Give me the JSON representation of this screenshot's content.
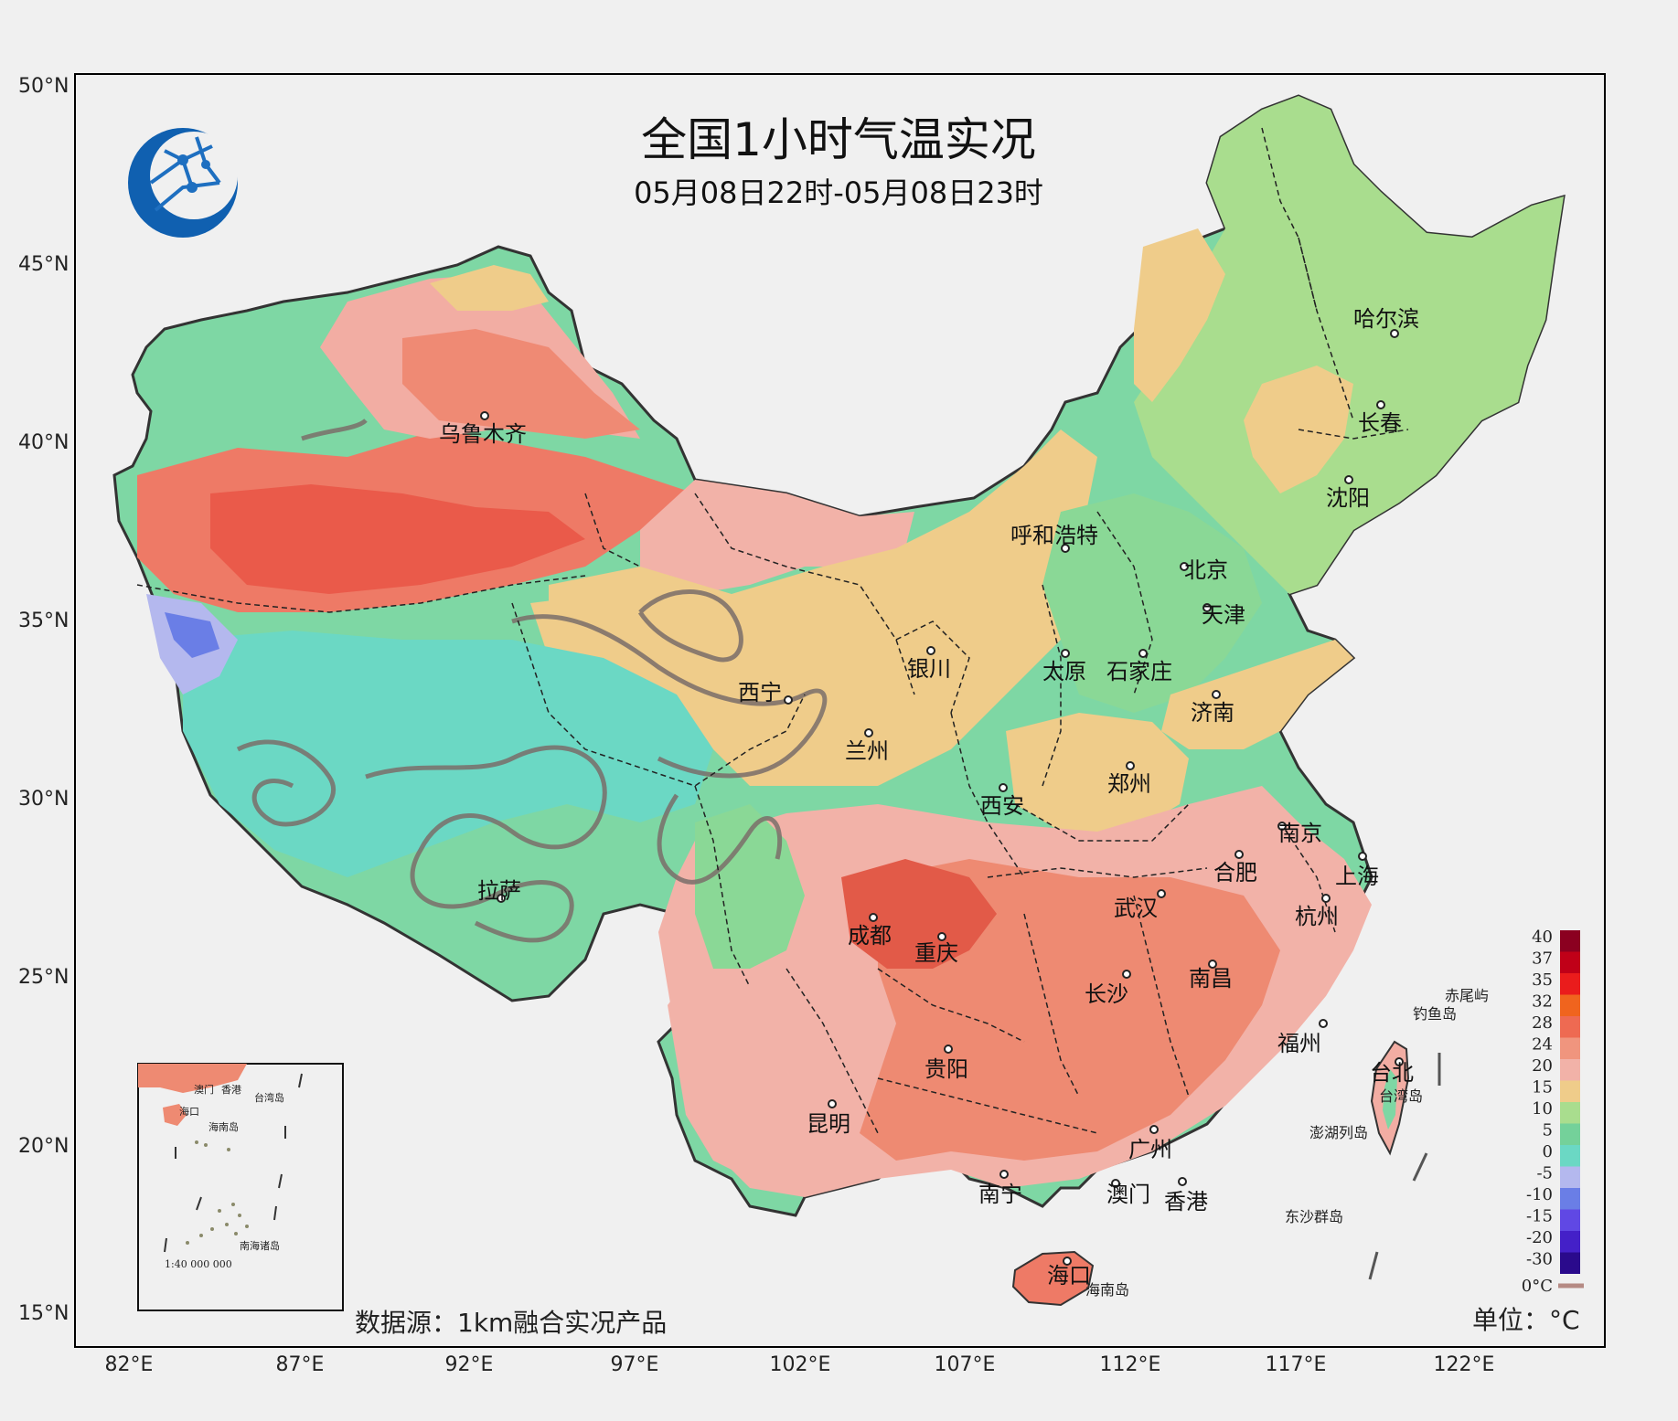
{
  "title": "全国1小时气温实况",
  "subtitle": "05月08日22时-05月08日23时",
  "data_source": "数据源：1km融合实况产品",
  "unit_label": "单位：°C",
  "axes": {
    "lat_labels": [
      "50°N",
      "45°N",
      "40°N",
      "35°N",
      "30°N",
      "25°N",
      "20°N",
      "15°N"
    ],
    "lon_labels": [
      "82°E",
      "87°E",
      "92°E",
      "97°E",
      "102°E",
      "107°E",
      "112°E",
      "117°E",
      "122°E"
    ]
  },
  "legend": {
    "labels": [
      "40",
      "37",
      "35",
      "32",
      "28",
      "24",
      "20",
      "15",
      "10",
      "5",
      "0",
      "-5",
      "-10",
      "-15",
      "-20",
      "-30"
    ],
    "colors": [
      "#8b0020",
      "#c00018",
      "#ea1c1c",
      "#f0641e",
      "#ee6a52",
      "#f0957e",
      "#f2b2a8",
      "#efcc8a",
      "#a9dd8e",
      "#74d19a",
      "#6bd8c4",
      "#b4b8ee",
      "#6a7ee6",
      "#6048e4",
      "#4420c8",
      "#2a0a8c"
    ],
    "zero_line_label": "0°C",
    "zero_line_color": "#b58a84"
  },
  "cities": [
    "乌鲁木齐",
    "哈尔滨",
    "长春",
    "沈阳",
    "呼和浩特",
    "北京",
    "天津",
    "银川",
    "太原",
    "石家庄",
    "西宁",
    "兰州",
    "济南",
    "郑州",
    "西安",
    "南京",
    "合肥",
    "上海",
    "杭州",
    "武汉",
    "拉萨",
    "成都",
    "重庆",
    "长沙",
    "南昌",
    "福州",
    "贵阳",
    "台北",
    "昆明",
    "广州",
    "南宁",
    "澳门",
    "香港",
    "海口"
  ],
  "islands": [
    "赤尾屿",
    "钓鱼岛",
    "台湾岛",
    "澎湖列岛",
    "东沙群岛",
    "海南岛"
  ],
  "inset": {
    "labels": [
      "澳门",
      "香港",
      "台湾岛",
      "海口",
      "海南岛",
      "南海诸岛"
    ],
    "scale": "1:40 000 000"
  }
}
